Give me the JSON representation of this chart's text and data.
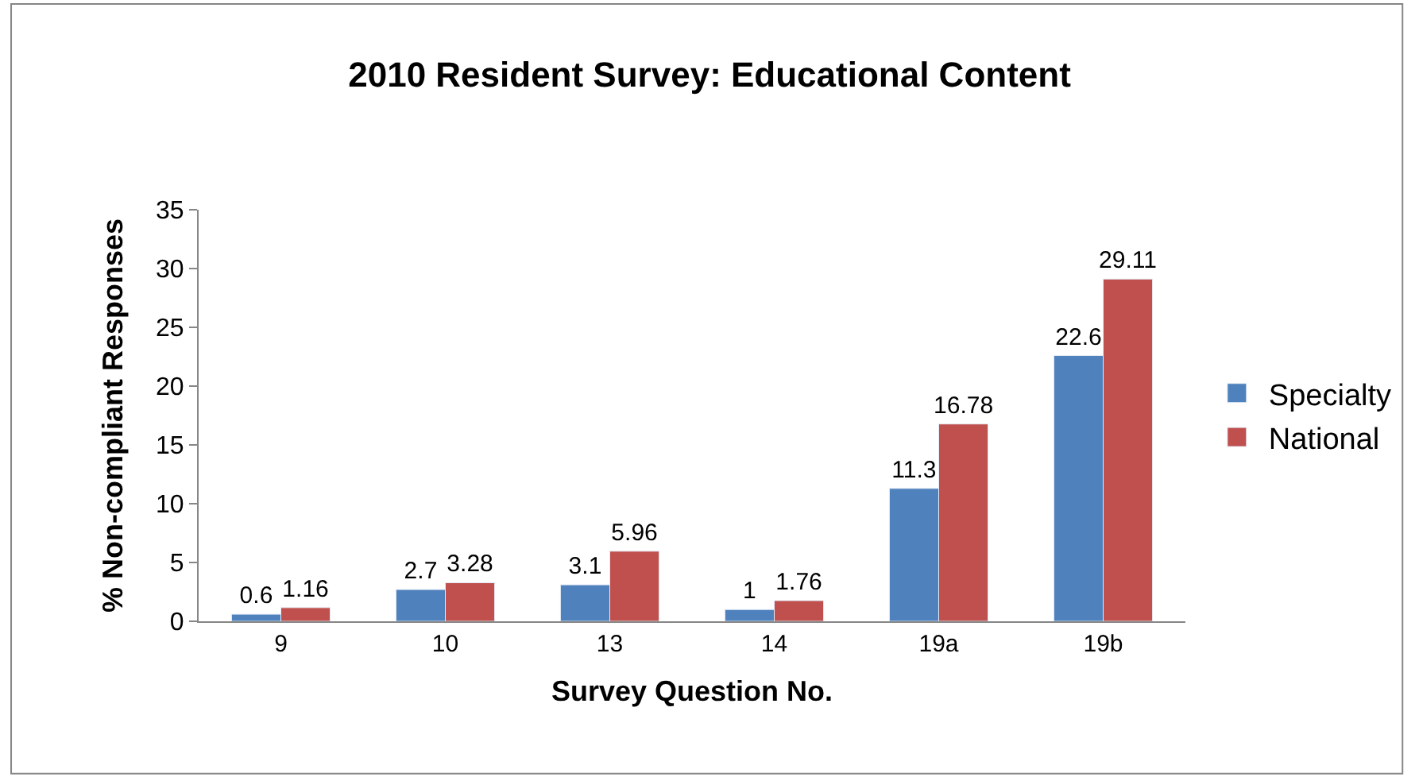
{
  "chart_data": {
    "type": "bar",
    "title": "2010 Resident Survey: Educational Content",
    "xlabel": "Survey Question No.",
    "ylabel": "% Non-compliant Responses",
    "categories": [
      "9",
      "10",
      "13",
      "14",
      "19a",
      "19b"
    ],
    "series": [
      {
        "name": "Specialty",
        "color": "#4f81bd",
        "values": [
          0.6,
          2.7,
          3.1,
          1,
          11.3,
          22.6
        ]
      },
      {
        "name": "National",
        "color": "#c0504d",
        "values": [
          1.16,
          3.28,
          5.96,
          1.76,
          16.78,
          29.11
        ]
      }
    ],
    "ylim": [
      0,
      35
    ],
    "yticks": [
      0,
      5,
      10,
      15,
      20,
      25,
      30,
      35
    ],
    "legend": "right",
    "data_labels": true
  }
}
